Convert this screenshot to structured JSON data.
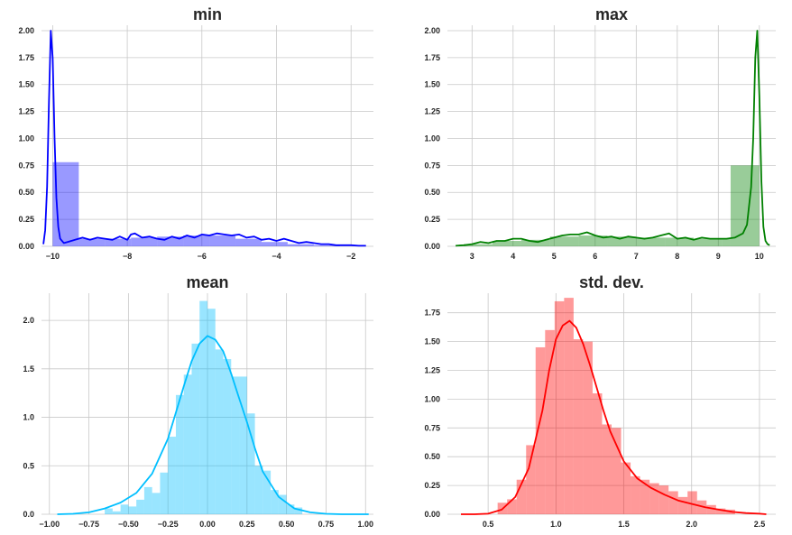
{
  "chart_data": [
    {
      "type": "histogram+kde",
      "title": "min",
      "xlim": [
        -10.3,
        -1.4
      ],
      "ylim": [
        0,
        2.05
      ],
      "xticks": [
        -10,
        -8,
        -6,
        -4,
        -2
      ],
      "xtick_labels": [
        "−10",
        "−8",
        "−6",
        "−4",
        "−2"
      ],
      "yticks": [
        0,
        0.25,
        0.5,
        0.75,
        1.0,
        1.25,
        1.5,
        1.75,
        2.0
      ],
      "ytick_labels": [
        "0.00",
        "0.25",
        "0.50",
        "0.75",
        "1.00",
        "1.25",
        "1.50",
        "1.75",
        "2.00"
      ],
      "grid": true,
      "color": "#0000ff",
      "hist": {
        "bins": [
          [
            -10.0,
            -9.3
          ],
          [
            -9.3,
            -8.6
          ],
          [
            -8.6,
            -7.9
          ],
          [
            -7.9,
            -7.2
          ],
          [
            -7.2,
            -6.5
          ],
          [
            -6.5,
            -5.8
          ],
          [
            -5.8,
            -5.1
          ],
          [
            -5.1,
            -4.4
          ],
          [
            -4.4,
            -3.7
          ],
          [
            -3.7,
            -3.0
          ],
          [
            -3.0,
            -2.3
          ]
        ],
        "heights": [
          0.78,
          0.07,
          0.07,
          0.08,
          0.09,
          0.1,
          0.1,
          0.07,
          0.04,
          0.02,
          0.01
        ]
      },
      "kde": {
        "x": [
          -10.25,
          -10.2,
          -10.15,
          -10.1,
          -10.05,
          -10.0,
          -9.95,
          -9.9,
          -9.85,
          -9.8,
          -9.7,
          -9.6,
          -9.4,
          -9.2,
          -9.0,
          -8.8,
          -8.6,
          -8.4,
          -8.2,
          -8.0,
          -7.9,
          -7.8,
          -7.6,
          -7.4,
          -7.2,
          -7.0,
          -6.8,
          -6.6,
          -6.4,
          -6.2,
          -6.0,
          -5.8,
          -5.6,
          -5.4,
          -5.2,
          -5.0,
          -4.8,
          -4.6,
          -4.4,
          -4.2,
          -4.0,
          -3.8,
          -3.6,
          -3.4,
          -3.2,
          -3.0,
          -2.8,
          -2.6,
          -2.4,
          -2.2,
          -2.0,
          -1.8,
          -1.6
        ],
        "y": [
          0.02,
          0.15,
          0.55,
          1.35,
          2.0,
          1.75,
          1.0,
          0.45,
          0.18,
          0.07,
          0.03,
          0.04,
          0.06,
          0.08,
          0.06,
          0.08,
          0.07,
          0.06,
          0.09,
          0.06,
          0.11,
          0.12,
          0.08,
          0.09,
          0.07,
          0.06,
          0.09,
          0.07,
          0.1,
          0.08,
          0.11,
          0.1,
          0.12,
          0.11,
          0.1,
          0.11,
          0.08,
          0.09,
          0.06,
          0.07,
          0.05,
          0.07,
          0.05,
          0.03,
          0.04,
          0.03,
          0.02,
          0.02,
          0.01,
          0.01,
          0.01,
          0.005,
          0.005
        ]
      }
    },
    {
      "type": "histogram+kde",
      "title": "max",
      "xlim": [
        2.4,
        10.4
      ],
      "ylim": [
        0,
        2.05
      ],
      "xticks": [
        3,
        4,
        5,
        6,
        7,
        8,
        9,
        10
      ],
      "xtick_labels": [
        "3",
        "4",
        "5",
        "6",
        "7",
        "8",
        "9",
        "10"
      ],
      "yticks": [
        0,
        0.25,
        0.5,
        0.75,
        1.0,
        1.25,
        1.5,
        1.75,
        2.0
      ],
      "ytick_labels": [
        "0.00",
        "0.25",
        "0.50",
        "0.75",
        "1.00",
        "1.25",
        "1.50",
        "1.75",
        "2.00"
      ],
      "grid": true,
      "color": "#008000",
      "hist": {
        "bins": [
          [
            2.8,
            3.5
          ],
          [
            3.5,
            4.2
          ],
          [
            4.2,
            4.9
          ],
          [
            4.9,
            5.6
          ],
          [
            5.6,
            6.3
          ],
          [
            6.3,
            7.0
          ],
          [
            7.0,
            7.7
          ],
          [
            7.7,
            8.4
          ],
          [
            8.4,
            9.1
          ],
          [
            9.1,
            9.3
          ],
          [
            9.3,
            10.0
          ]
        ],
        "heights": [
          0.02,
          0.05,
          0.06,
          0.09,
          0.1,
          0.09,
          0.08,
          0.08,
          0.07,
          0.07,
          0.75
        ]
      },
      "kde": {
        "x": [
          2.6,
          2.8,
          3.0,
          3.2,
          3.4,
          3.6,
          3.8,
          4.0,
          4.2,
          4.4,
          4.6,
          4.8,
          5.0,
          5.2,
          5.4,
          5.6,
          5.8,
          6.0,
          6.2,
          6.4,
          6.6,
          6.8,
          7.0,
          7.2,
          7.4,
          7.6,
          7.8,
          8.0,
          8.2,
          8.4,
          8.6,
          8.8,
          9.0,
          9.2,
          9.4,
          9.6,
          9.7,
          9.8,
          9.85,
          9.9,
          9.95,
          10.0,
          10.05,
          10.1,
          10.15,
          10.2,
          10.25
        ],
        "y": [
          0.005,
          0.01,
          0.02,
          0.04,
          0.03,
          0.05,
          0.05,
          0.07,
          0.07,
          0.05,
          0.04,
          0.06,
          0.08,
          0.1,
          0.11,
          0.11,
          0.13,
          0.1,
          0.08,
          0.09,
          0.07,
          0.09,
          0.08,
          0.07,
          0.08,
          0.1,
          0.12,
          0.07,
          0.08,
          0.06,
          0.08,
          0.07,
          0.07,
          0.07,
          0.08,
          0.12,
          0.2,
          0.55,
          1.0,
          1.75,
          2.0,
          1.4,
          0.6,
          0.18,
          0.05,
          0.02,
          0.01
        ]
      }
    },
    {
      "type": "histogram+kde",
      "title": "mean",
      "xlim": [
        -1.05,
        1.05
      ],
      "ylim": [
        0,
        2.28
      ],
      "xticks": [
        -1.0,
        -0.75,
        -0.5,
        -0.25,
        0.0,
        0.25,
        0.5,
        0.75,
        1.0
      ],
      "xtick_labels": [
        "−1.00",
        "−0.75",
        "−0.50",
        "−0.25",
        "0.00",
        "0.25",
        "0.50",
        "0.75",
        "1.00"
      ],
      "yticks": [
        0,
        0.5,
        1.0,
        1.5,
        2.0
      ],
      "ytick_labels": [
        "0.0",
        "0.5",
        "1.0",
        "1.5",
        "2.0"
      ],
      "grid": true,
      "color": "#00bfff",
      "hist": {
        "bins": [
          [
            -0.65,
            -0.6
          ],
          [
            -0.6,
            -0.55
          ],
          [
            -0.55,
            -0.5
          ],
          [
            -0.5,
            -0.45
          ],
          [
            -0.45,
            -0.4
          ],
          [
            -0.4,
            -0.35
          ],
          [
            -0.35,
            -0.3
          ],
          [
            -0.3,
            -0.25
          ],
          [
            -0.25,
            -0.2
          ],
          [
            -0.2,
            -0.15
          ],
          [
            -0.15,
            -0.1
          ],
          [
            -0.1,
            -0.05
          ],
          [
            -0.05,
            0.0
          ],
          [
            0.0,
            0.05
          ],
          [
            0.05,
            0.1
          ],
          [
            0.1,
            0.15
          ],
          [
            0.15,
            0.2
          ],
          [
            0.2,
            0.25
          ],
          [
            0.25,
            0.3
          ],
          [
            0.3,
            0.35
          ],
          [
            0.35,
            0.4
          ],
          [
            0.4,
            0.45
          ],
          [
            0.45,
            0.5
          ],
          [
            0.5,
            0.55
          ],
          [
            0.55,
            0.6
          ]
        ],
        "heights": [
          0.06,
          0.03,
          0.1,
          0.08,
          0.15,
          0.28,
          0.22,
          0.43,
          0.8,
          1.23,
          1.44,
          1.76,
          2.2,
          2.12,
          1.7,
          1.6,
          1.42,
          1.42,
          1.04,
          0.5,
          0.45,
          0.25,
          0.2,
          0.1,
          0.07
        ]
      },
      "kde": {
        "x": [
          -0.95,
          -0.85,
          -0.75,
          -0.65,
          -0.55,
          -0.45,
          -0.35,
          -0.25,
          -0.2,
          -0.15,
          -0.1,
          -0.05,
          0.0,
          0.05,
          0.1,
          0.15,
          0.2,
          0.25,
          0.3,
          0.35,
          0.45,
          0.55,
          0.65,
          0.75,
          0.85,
          0.95,
          1.02
        ],
        "y": [
          0.0,
          0.005,
          0.02,
          0.06,
          0.12,
          0.22,
          0.42,
          0.78,
          1.05,
          1.32,
          1.58,
          1.76,
          1.84,
          1.8,
          1.68,
          1.45,
          1.2,
          0.95,
          0.68,
          0.44,
          0.18,
          0.06,
          0.02,
          0.005,
          0.0,
          0.0,
          0.0
        ]
      }
    },
    {
      "type": "histogram+kde",
      "title": "std. dev.",
      "xlim": [
        0.2,
        2.62
      ],
      "ylim": [
        0,
        1.92
      ],
      "xticks": [
        0.5,
        1.0,
        1.5,
        2.0,
        2.5
      ],
      "xtick_labels": [
        "0.5",
        "1.0",
        "1.5",
        "2.0",
        "2.5"
      ],
      "yticks": [
        0,
        0.25,
        0.5,
        0.75,
        1.0,
        1.25,
        1.5,
        1.75
      ],
      "ytick_labels": [
        "0.00",
        "0.25",
        "0.50",
        "0.75",
        "1.00",
        "1.25",
        "1.50",
        "1.75"
      ],
      "grid": true,
      "color": "#ff0000",
      "hist": {
        "bins": [
          [
            0.57,
            0.64
          ],
          [
            0.64,
            0.71
          ],
          [
            0.71,
            0.78
          ],
          [
            0.78,
            0.85
          ],
          [
            0.85,
            0.92
          ],
          [
            0.92,
            0.99
          ],
          [
            0.99,
            1.06
          ],
          [
            1.06,
            1.13
          ],
          [
            1.13,
            1.2
          ],
          [
            1.2,
            1.27
          ],
          [
            1.27,
            1.34
          ],
          [
            1.34,
            1.41
          ],
          [
            1.41,
            1.48
          ],
          [
            1.48,
            1.55
          ],
          [
            1.55,
            1.62
          ],
          [
            1.62,
            1.69
          ],
          [
            1.69,
            1.76
          ],
          [
            1.76,
            1.83
          ],
          [
            1.83,
            1.9
          ],
          [
            1.9,
            1.97
          ],
          [
            1.97,
            2.04
          ],
          [
            2.04,
            2.11
          ],
          [
            2.11,
            2.18
          ],
          [
            2.18,
            2.25
          ],
          [
            2.25,
            2.32
          ]
        ],
        "heights": [
          0.1,
          0.13,
          0.3,
          0.6,
          1.45,
          1.6,
          1.85,
          1.88,
          1.52,
          1.5,
          1.05,
          0.78,
          0.75,
          0.45,
          0.33,
          0.3,
          0.27,
          0.25,
          0.2,
          0.15,
          0.2,
          0.12,
          0.08,
          0.05,
          0.04
        ]
      },
      "kde": {
        "x": [
          0.3,
          0.4,
          0.5,
          0.6,
          0.7,
          0.8,
          0.9,
          0.95,
          1.0,
          1.05,
          1.1,
          1.15,
          1.2,
          1.25,
          1.3,
          1.35,
          1.4,
          1.5,
          1.6,
          1.7,
          1.8,
          1.9,
          2.0,
          2.1,
          2.2,
          2.3,
          2.4,
          2.5,
          2.55
        ],
        "y": [
          0.0,
          0.0,
          0.005,
          0.04,
          0.15,
          0.4,
          0.9,
          1.25,
          1.52,
          1.64,
          1.68,
          1.62,
          1.48,
          1.3,
          1.1,
          0.9,
          0.72,
          0.46,
          0.31,
          0.23,
          0.17,
          0.12,
          0.09,
          0.06,
          0.04,
          0.02,
          0.01,
          0.005,
          0.0
        ]
      }
    }
  ]
}
